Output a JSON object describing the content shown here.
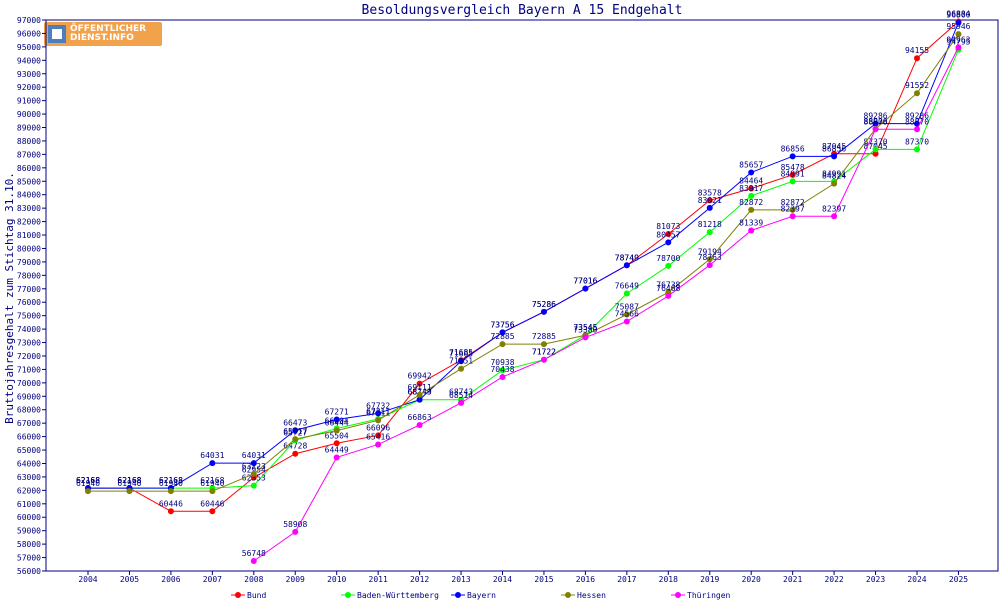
{
  "chart_data": {
    "type": "line",
    "title": "Besoldungsvergleich Bayern A 15 Endgehalt",
    "ylabel": "Bruttojahresgehalt zum Stichtag 31.10.",
    "xlabel": "",
    "ylim": [
      56000,
      97000
    ],
    "ytick_step": 1000,
    "x": [
      "2004",
      "2005",
      "2006",
      "2007",
      "2008",
      "2009",
      "2010",
      "2011",
      "2012",
      "2013",
      "2014",
      "2015",
      "2016",
      "2017",
      "2018",
      "2019",
      "2020",
      "2021",
      "2022",
      "2023",
      "2024",
      "2025"
    ],
    "grid": false,
    "legend_position": "bottom",
    "series": [
      {
        "name": "Bund",
        "color": "#ff0000",
        "values": [
          62168,
          62168,
          60446,
          60446,
          62954,
          64728,
          65504,
          66096,
          69942,
          71685,
          73756,
          75286,
          77016,
          78749,
          81073,
          83578,
          84464,
          85478,
          87045,
          87045,
          94155,
          96884
        ]
      },
      {
        "name": "Baden-Württemberg",
        "color": "#00ff00",
        "values": [
          62168,
          62168,
          62168,
          62168,
          62353,
          65727,
          66604,
          67311,
          68743,
          68743,
          70938,
          71722,
          73545,
          76649,
          78700,
          81218,
          83917,
          84991,
          84991,
          87370,
          87370,
          94795
        ]
      },
      {
        "name": "Bayern",
        "color": "#0000ff",
        "values": [
          62168,
          62168,
          62168,
          64031,
          64031,
          66473,
          67271,
          67732,
          68749,
          71605,
          73756,
          75286,
          77016,
          78749,
          80457,
          83021,
          85657,
          86856,
          86856,
          89286,
          89286,
          96800
        ]
      },
      {
        "name": "Hessen",
        "color": "#808000",
        "values": [
          61940,
          61940,
          61940,
          61940,
          63223,
          65817,
          66444,
          67211,
          69111,
          71051,
          72885,
          72885,
          73545,
          75087,
          76738,
          79194,
          82872,
          82872,
          84824,
          88906,
          91552,
          95946
        ]
      },
      {
        "name": "Thüringen",
        "color": "#ff00ff",
        "values": [
          null,
          null,
          null,
          null,
          56748,
          58908,
          64449,
          65416,
          66863,
          68514,
          70438,
          71722,
          73380,
          74566,
          76468,
          78763,
          81339,
          82397,
          82397,
          88870,
          88870,
          94963
        ]
      }
    ]
  },
  "logo": {
    "line1": "ÖFFENTLICHER",
    "line2": "DIENST.INFO"
  }
}
